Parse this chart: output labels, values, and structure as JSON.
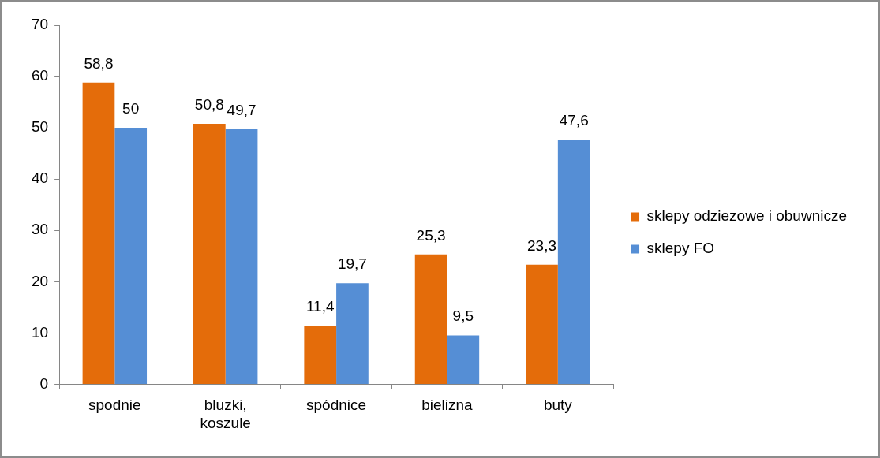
{
  "chart_data": {
    "type": "bar",
    "categories": [
      "spodnie",
      "bluzki, koszule",
      "spódnice",
      "bielizna",
      "buty"
    ],
    "series": [
      {
        "name": "sklepy odziezowe i obuwnicze",
        "color": "#e46c0a",
        "values": [
          58.8,
          50.8,
          11.4,
          25.3,
          23.3
        ],
        "value_labels": [
          "58,8",
          "50,8",
          "11,4",
          "25,3",
          "23,3"
        ]
      },
      {
        "name": "sklepy FO",
        "color": "#558ed5",
        "values": [
          50,
          49.7,
          19.7,
          9.5,
          47.6
        ],
        "value_labels": [
          "50",
          "49,7",
          "19,7",
          "9,5",
          "47,6"
        ]
      }
    ],
    "ylim": [
      0,
      70
    ],
    "yticks": [
      0,
      10,
      20,
      30,
      40,
      50,
      60,
      70
    ],
    "grid": false,
    "legend": "right"
  }
}
